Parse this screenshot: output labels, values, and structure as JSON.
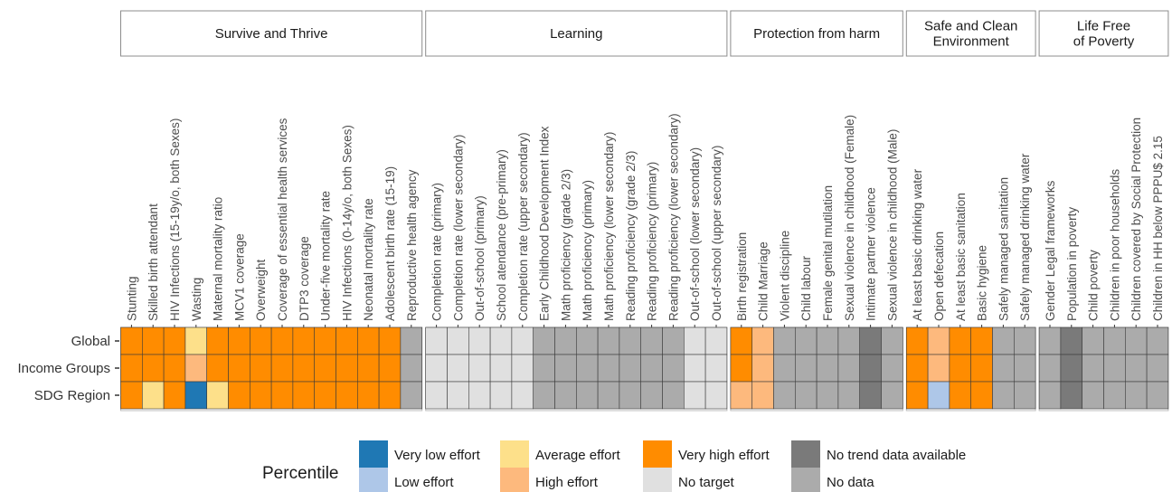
{
  "chart_data": {
    "type": "heatmap",
    "rows": [
      "Global",
      "Income Groups",
      "SDG Region"
    ],
    "colors": {
      "VL": "#1f78b4",
      "L": "#aec7e8",
      "A": "#fde08a",
      "H": "#fdb97d",
      "VH": "#ff8c00",
      "NT": "#e0e0e0",
      "NTD": "#7a7a7a",
      "ND": "#ababab"
    },
    "legend": {
      "title": "Percentile",
      "items": [
        {
          "key": "VL",
          "label": "Very low effort"
        },
        {
          "key": "L",
          "label": "Low effort"
        },
        {
          "key": "A",
          "label": "Average effort"
        },
        {
          "key": "H",
          "label": "High effort"
        },
        {
          "key": "VH",
          "label": "Very high effort"
        },
        {
          "key": "NT",
          "label": "No target"
        },
        {
          "key": "NTD",
          "label": "No trend data available"
        },
        {
          "key": "ND",
          "label": "No data"
        }
      ]
    },
    "panels": [
      {
        "title": [
          "Survive and Thrive"
        ],
        "columns": [
          "Stunting",
          "Skilled birth attendant",
          "HIV Infections (15-19y/o, both Sexes)",
          "Wasting",
          "Maternal mortality ratio",
          "MCV1 coverage",
          "Overweight",
          "Coverage of essential health services",
          "DTP3 coverage",
          "Under-five mortality rate",
          "HIV Infections (0-14y/o, both Sexes)",
          "Neonatal mortality rate",
          "Adolescent birth rate (15-19)",
          "Reproductive health agency"
        ],
        "values": [
          [
            "VH",
            "VH",
            "VH",
            "A",
            "VH",
            "VH",
            "VH",
            "VH",
            "VH",
            "VH",
            "VH",
            "VH",
            "VH",
            "ND"
          ],
          [
            "VH",
            "VH",
            "VH",
            "H",
            "VH",
            "VH",
            "VH",
            "VH",
            "VH",
            "VH",
            "VH",
            "VH",
            "VH",
            "ND"
          ],
          [
            "VH",
            "A",
            "VH",
            "VL",
            "A",
            "VH",
            "VH",
            "VH",
            "VH",
            "VH",
            "VH",
            "VH",
            "VH",
            "ND"
          ]
        ]
      },
      {
        "title": [
          "Learning"
        ],
        "columns": [
          "Completion rate (primary)",
          "Completion rate (lower secondary)",
          "Out-of-school (primary)",
          "School atendance (pre-primary)",
          "Completion rate (upper secondary)",
          "Early Childhood Development Index",
          "Math proficiency (grade 2/3)",
          "Math proficiency (primary)",
          "Math proficiency (lower secondary)",
          "Reading proficiency (grade 2/3)",
          "Reading proficiency (primary)",
          "Reading proficiency (lower secondary)",
          "Out-of-school (lower secondary)",
          "Out-of-school (upper secondary)"
        ],
        "values": [
          [
            "NT",
            "NT",
            "NT",
            "NT",
            "NT",
            "ND",
            "ND",
            "ND",
            "ND",
            "ND",
            "ND",
            "ND",
            "NT",
            "NT"
          ],
          [
            "NT",
            "NT",
            "NT",
            "NT",
            "NT",
            "ND",
            "ND",
            "ND",
            "ND",
            "ND",
            "ND",
            "ND",
            "NT",
            "NT"
          ],
          [
            "NT",
            "NT",
            "NT",
            "NT",
            "NT",
            "ND",
            "ND",
            "ND",
            "ND",
            "ND",
            "ND",
            "ND",
            "NT",
            "NT"
          ]
        ]
      },
      {
        "title": [
          "Protection from harm"
        ],
        "columns": [
          "Birth registration",
          "Child Marriage",
          "Violent discipline",
          "Child labour",
          "Female genital mutilation",
          "Sexual violence in childhood (Female)",
          "Intimate partner violence",
          "Sexual violence in childhood (Male)"
        ],
        "values": [
          [
            "VH",
            "H",
            "ND",
            "ND",
            "ND",
            "ND",
            "NTD",
            "ND"
          ],
          [
            "VH",
            "H",
            "ND",
            "ND",
            "ND",
            "ND",
            "NTD",
            "ND"
          ],
          [
            "H",
            "H",
            "ND",
            "ND",
            "ND",
            "ND",
            "NTD",
            "ND"
          ]
        ]
      },
      {
        "title": [
          "Safe and Clean",
          "Environment"
        ],
        "columns": [
          "At least basic drinking water",
          "Open defecation",
          "At least basic sanitation",
          "Basic hygiene",
          "Safely managed sanitation",
          "Safely managed drinking water"
        ],
        "values": [
          [
            "VH",
            "H",
            "VH",
            "VH",
            "ND",
            "ND"
          ],
          [
            "VH",
            "H",
            "VH",
            "VH",
            "ND",
            "ND"
          ],
          [
            "VH",
            "L",
            "VH",
            "VH",
            "ND",
            "ND"
          ]
        ]
      },
      {
        "title": [
          "Life Free",
          "of Poverty"
        ],
        "columns": [
          "Gender Legal frameworks",
          "Population in poverty",
          "Child poverty",
          "Children in poor households",
          "Children covered by Social Protection",
          "Children in HH below PPPU$ 2.15"
        ],
        "values": [
          [
            "ND",
            "NTD",
            "ND",
            "ND",
            "ND",
            "ND"
          ],
          [
            "ND",
            "NTD",
            "ND",
            "ND",
            "ND",
            "ND"
          ],
          [
            "ND",
            "NTD",
            "ND",
            "ND",
            "ND",
            "ND"
          ]
        ]
      }
    ]
  }
}
